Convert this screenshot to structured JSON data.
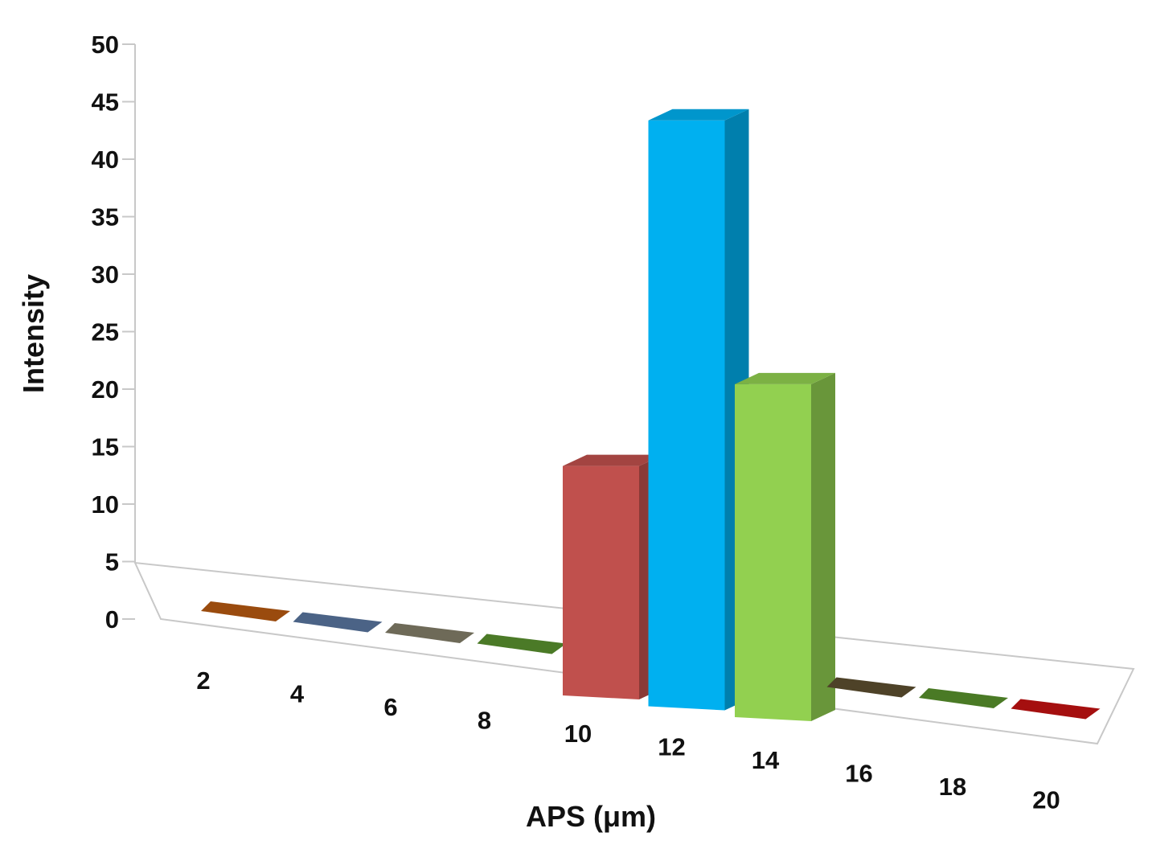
{
  "chart_data": {
    "type": "bar",
    "title": "",
    "xlabel": "APS (μm)",
    "ylabel": "Intensity",
    "categories": [
      "2",
      "4",
      "6",
      "8",
      "10",
      "12",
      "14",
      "16",
      "18",
      "20"
    ],
    "values": [
      0,
      0,
      0,
      0,
      18,
      49,
      27,
      0,
      0,
      0
    ],
    "colors": [
      "#9a4b0e",
      "#4b6386",
      "#6e6a58",
      "#4b7a27",
      "#c0504d",
      "#00b0f0",
      "#92d050",
      "#4e4228",
      "#4a7a25",
      "#a50f0f"
    ],
    "ylim": [
      0,
      50
    ],
    "yticks": [
      "0",
      "5",
      "10",
      "15",
      "20",
      "25",
      "30",
      "35",
      "40",
      "45",
      "50"
    ],
    "grid": false,
    "legend": "none",
    "style": "3d-column"
  }
}
